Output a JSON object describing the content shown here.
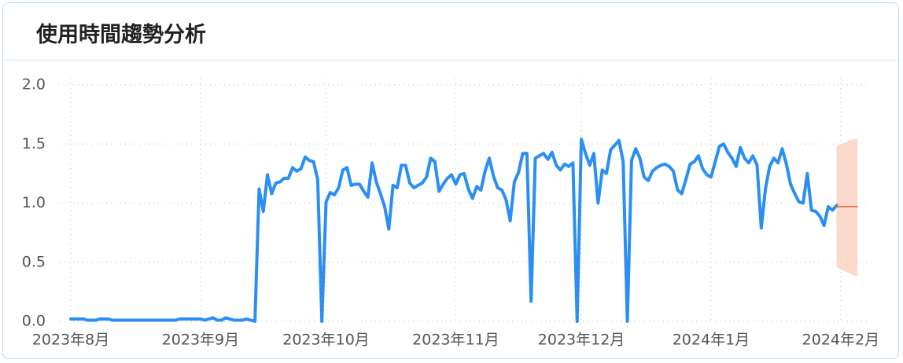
{
  "chart_data": {
    "type": "line",
    "title": "使用時間趨勢分析",
    "categories": [
      "2023年8月",
      null,
      null,
      null,
      null,
      null,
      null,
      null,
      null,
      null,
      null,
      null,
      null,
      null,
      null,
      null,
      null,
      null,
      null,
      null,
      null,
      null,
      null,
      null,
      null,
      null,
      null,
      null,
      null,
      null,
      null,
      "2023年9月",
      null,
      null,
      null,
      null,
      null,
      null,
      null,
      null,
      null,
      null,
      null,
      null,
      null,
      null,
      null,
      null,
      null,
      null,
      null,
      null,
      null,
      null,
      null,
      null,
      null,
      null,
      null,
      null,
      null,
      "2023年10月",
      null,
      null,
      null,
      null,
      null,
      null,
      null,
      null,
      null,
      null,
      null,
      null,
      null,
      null,
      null,
      null,
      null,
      null,
      null,
      null,
      null,
      null,
      null,
      null,
      null,
      null,
      null,
      null,
      null,
      null,
      "2023年11月",
      null,
      null,
      null,
      null,
      null,
      null,
      null,
      null,
      null,
      null,
      null,
      null,
      null,
      null,
      null,
      null,
      null,
      null,
      null,
      null,
      null,
      null,
      null,
      null,
      null,
      null,
      null,
      null,
      null,
      "2023年12月",
      null,
      null,
      null,
      null,
      null,
      null,
      null,
      null,
      null,
      null,
      null,
      null,
      null,
      null,
      null,
      null,
      null,
      null,
      null,
      null,
      null,
      null,
      null,
      null,
      null,
      null,
      null,
      null,
      null,
      null,
      "2024年1月",
      null,
      null,
      null,
      null,
      null,
      null,
      null,
      null,
      null,
      null,
      null,
      null,
      null,
      null,
      null,
      null,
      null,
      null,
      null,
      null,
      null,
      null,
      null,
      null,
      null,
      null,
      null,
      null,
      null,
      null,
      "2024年2月",
      null,
      null,
      null,
      null
    ],
    "series": [
      {
        "color": "#2b8ef2",
        "values": [
          0.02,
          0.02,
          0.02,
          0.02,
          0.01,
          0.01,
          0.01,
          0.02,
          0.02,
          0.02,
          0.01,
          0.01,
          0.01,
          0.01,
          0.01,
          0.01,
          0.01,
          0.01,
          0.01,
          0.01,
          0.01,
          0.01,
          0.01,
          0.01,
          0.01,
          0.01,
          0.02,
          0.02,
          0.02,
          0.02,
          0.02,
          0.02,
          0.01,
          0.02,
          0.03,
          0.01,
          0.01,
          0.03,
          0.02,
          0.01,
          0.01,
          0.01,
          0.02,
          0.01,
          0,
          1.12,
          0.93,
          1.24,
          1.08,
          1.17,
          1.18,
          1.21,
          1.21,
          1.3,
          1.27,
          1.29,
          1.39,
          1.36,
          1.35,
          1.2,
          0,
          1.01,
          1.09,
          1.07,
          1.13,
          1.28,
          1.3,
          1.15,
          1.16,
          1.16,
          1.1,
          1.05,
          1.34,
          1.18,
          1.08,
          0.97,
          0.78,
          1.15,
          1.13,
          1.32,
          1.32,
          1.17,
          1.13,
          1.15,
          1.17,
          1.22,
          1.38,
          1.35,
          1.1,
          1.16,
          1.21,
          1.24,
          1.16,
          1.24,
          1.25,
          1.12,
          1.04,
          1.14,
          1.11,
          1.27,
          1.38,
          1.23,
          1.13,
          1.11,
          1.03,
          0.85,
          1.18,
          1.26,
          1.42,
          1.42,
          0.17,
          1.38,
          1.4,
          1.42,
          1.37,
          1.43,
          1.32,
          1.28,
          1.33,
          1.31,
          1.34,
          0,
          1.54,
          1.42,
          1.32,
          1.42,
          1.0,
          1.28,
          1.25,
          1.45,
          1.49,
          1.53,
          1.35,
          0,
          1.36,
          1.46,
          1.38,
          1.22,
          1.19,
          1.27,
          1.3,
          1.32,
          1.33,
          1.31,
          1.27,
          1.11,
          1.08,
          1.2,
          1.33,
          1.35,
          1.4,
          1.29,
          1.24,
          1.22,
          1.35,
          1.48,
          1.5,
          1.43,
          1.38,
          1.31,
          1.47,
          1.38,
          1.34,
          1.4,
          1.32,
          0.79,
          1.12,
          1.31,
          1.38,
          1.34,
          1.46,
          1.33,
          1.16,
          1.08,
          1.01,
          1.0,
          1.25,
          0.94,
          0.93,
          0.89,
          0.81,
          0.97,
          0.94,
          0.98,
          null,
          null,
          null,
          null,
          null
        ]
      },
      {
        "color": "#e8643a",
        "values": [
          null,
          null,
          null,
          null,
          null,
          null,
          null,
          null,
          null,
          null,
          null,
          null,
          null,
          null,
          null,
          null,
          null,
          null,
          null,
          null,
          null,
          null,
          null,
          null,
          null,
          null,
          null,
          null,
          null,
          null,
          null,
          null,
          null,
          null,
          null,
          null,
          null,
          null,
          null,
          null,
          null,
          null,
          null,
          null,
          null,
          null,
          null,
          null,
          null,
          null,
          null,
          null,
          null,
          null,
          null,
          null,
          null,
          null,
          null,
          null,
          null,
          null,
          null,
          null,
          null,
          null,
          null,
          null,
          null,
          null,
          null,
          null,
          null,
          null,
          null,
          null,
          null,
          null,
          null,
          null,
          null,
          null,
          null,
          null,
          null,
          null,
          null,
          null,
          null,
          null,
          null,
          null,
          null,
          null,
          null,
          null,
          null,
          null,
          null,
          null,
          null,
          null,
          null,
          null,
          null,
          null,
          null,
          null,
          null,
          null,
          null,
          null,
          null,
          null,
          null,
          null,
          null,
          null,
          null,
          null,
          null,
          null,
          null,
          null,
          null,
          null,
          null,
          null,
          null,
          null,
          null,
          null,
          null,
          null,
          null,
          null,
          null,
          null,
          null,
          null,
          null,
          null,
          null,
          null,
          null,
          null,
          null,
          null,
          null,
          null,
          null,
          null,
          null,
          null,
          null,
          null,
          null,
          null,
          null,
          null,
          null,
          null,
          null,
          null,
          null,
          null,
          null,
          null,
          null,
          null,
          null,
          null,
          null,
          null,
          null,
          null,
          null,
          null,
          null,
          null,
          null,
          null,
          null,
          0.97,
          0.97,
          0.97,
          0.97,
          0.97,
          0.97
        ]
      }
    ],
    "band": {
      "color": "#f7cdb9",
      "lower": [
        null,
        null,
        null,
        null,
        null,
        null,
        null,
        null,
        null,
        null,
        null,
        null,
        null,
        null,
        null,
        null,
        null,
        null,
        null,
        null,
        null,
        null,
        null,
        null,
        null,
        null,
        null,
        null,
        null,
        null,
        null,
        null,
        null,
        null,
        null,
        null,
        null,
        null,
        null,
        null,
        null,
        null,
        null,
        null,
        null,
        null,
        null,
        null,
        null,
        null,
        null,
        null,
        null,
        null,
        null,
        null,
        null,
        null,
        null,
        null,
        null,
        null,
        null,
        null,
        null,
        null,
        null,
        null,
        null,
        null,
        null,
        null,
        null,
        null,
        null,
        null,
        null,
        null,
        null,
        null,
        null,
        null,
        null,
        null,
        null,
        null,
        null,
        null,
        null,
        null,
        null,
        null,
        null,
        null,
        null,
        null,
        null,
        null,
        null,
        null,
        null,
        null,
        null,
        null,
        null,
        null,
        null,
        null,
        null,
        null,
        null,
        null,
        null,
        null,
        null,
        null,
        null,
        null,
        null,
        null,
        null,
        null,
        null,
        null,
        null,
        null,
        null,
        null,
        null,
        null,
        null,
        null,
        null,
        null,
        null,
        null,
        null,
        null,
        null,
        null,
        null,
        null,
        null,
        null,
        null,
        null,
        null,
        null,
        null,
        null,
        null,
        null,
        null,
        null,
        null,
        null,
        null,
        null,
        null,
        null,
        null,
        null,
        null,
        null,
        null,
        null,
        null,
        null,
        null,
        null,
        null,
        null,
        null,
        null,
        null,
        null,
        null,
        null,
        null,
        null,
        null,
        null,
        null,
        0.46,
        0.44,
        0.42,
        0.41,
        0.39,
        0.38
      ],
      "upper": [
        null,
        null,
        null,
        null,
        null,
        null,
        null,
        null,
        null,
        null,
        null,
        null,
        null,
        null,
        null,
        null,
        null,
        null,
        null,
        null,
        null,
        null,
        null,
        null,
        null,
        null,
        null,
        null,
        null,
        null,
        null,
        null,
        null,
        null,
        null,
        null,
        null,
        null,
        null,
        null,
        null,
        null,
        null,
        null,
        null,
        null,
        null,
        null,
        null,
        null,
        null,
        null,
        null,
        null,
        null,
        null,
        null,
        null,
        null,
        null,
        null,
        null,
        null,
        null,
        null,
        null,
        null,
        null,
        null,
        null,
        null,
        null,
        null,
        null,
        null,
        null,
        null,
        null,
        null,
        null,
        null,
        null,
        null,
        null,
        null,
        null,
        null,
        null,
        null,
        null,
        null,
        null,
        null,
        null,
        null,
        null,
        null,
        null,
        null,
        null,
        null,
        null,
        null,
        null,
        null,
        null,
        null,
        null,
        null,
        null,
        null,
        null,
        null,
        null,
        null,
        null,
        null,
        null,
        null,
        null,
        null,
        null,
        null,
        null,
        null,
        null,
        null,
        null,
        null,
        null,
        null,
        null,
        null,
        null,
        null,
        null,
        null,
        null,
        null,
        null,
        null,
        null,
        null,
        null,
        null,
        null,
        null,
        null,
        null,
        null,
        null,
        null,
        null,
        null,
        null,
        null,
        null,
        null,
        null,
        null,
        null,
        null,
        null,
        null,
        null,
        null,
        null,
        null,
        null,
        null,
        null,
        null,
        null,
        null,
        null,
        null,
        null,
        null,
        null,
        null,
        null,
        null,
        null,
        1.48,
        1.5,
        1.51,
        1.53,
        1.54,
        1.55
      ]
    },
    "ylim": [
      0,
      2
    ],
    "yticks": [
      {
        "value": 0,
        "label": "0.0"
      },
      0.5,
      {
        "value": 1,
        "label": "1.0"
      },
      1.5,
      {
        "value": 2,
        "label": "2.0"
      }
    ],
    "grid": true
  }
}
